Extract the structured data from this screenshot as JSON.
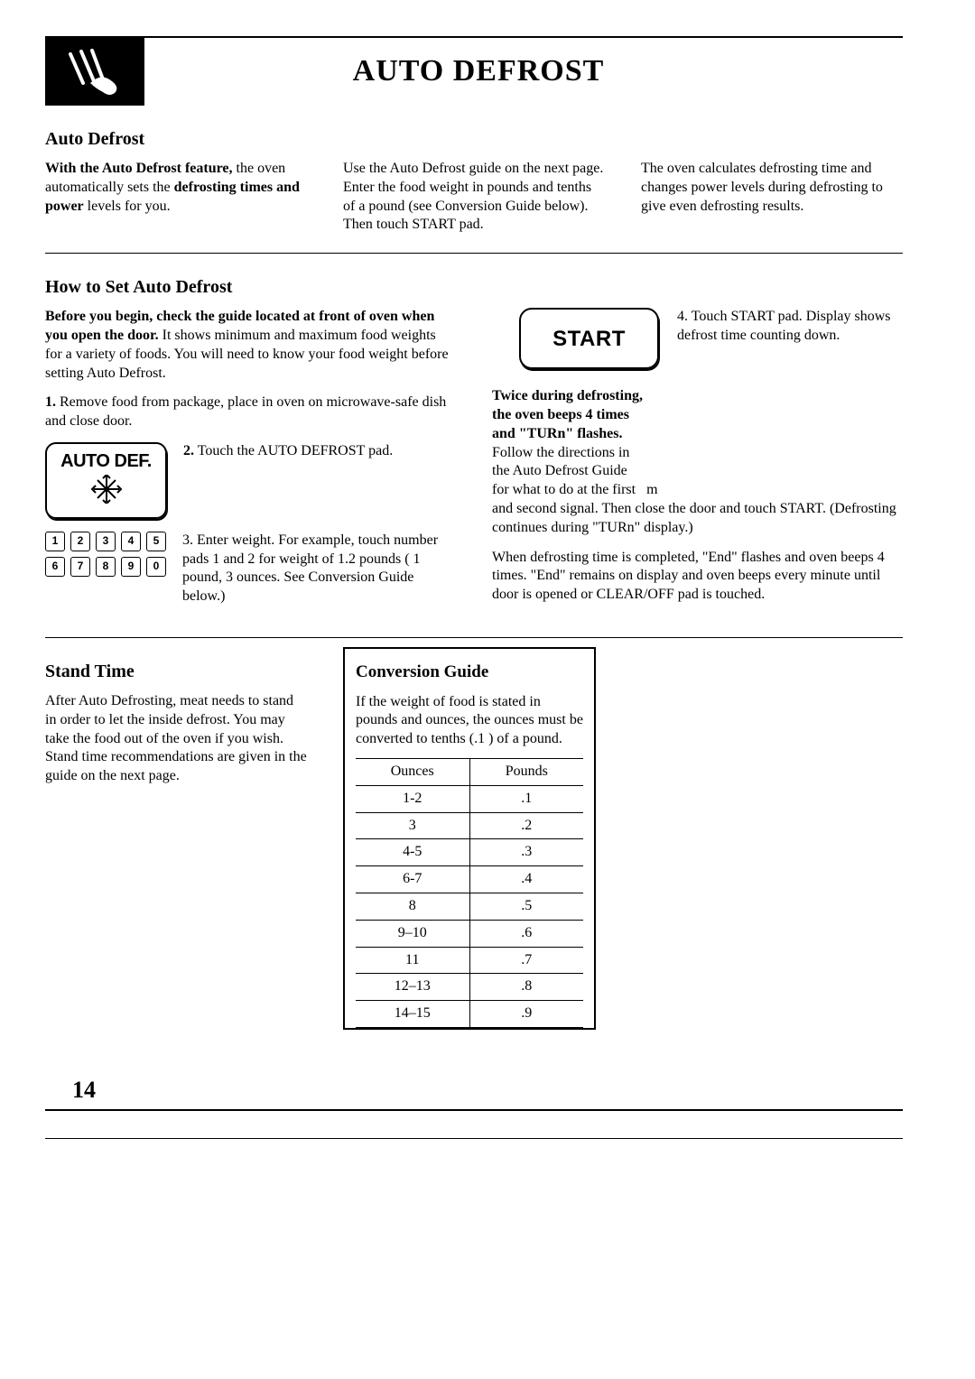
{
  "page": {
    "title": "AUTO DEFROST",
    "number": "14"
  },
  "section1": {
    "heading": "Auto Defrost",
    "col1_html": "<span class=\"bold\">With the Auto Defrost feature,</span> the oven automatically sets the <span class=\"bold\">defrosting times and power</span> levels for you.",
    "col2": "Use the Auto Defrost guide on the next page. Enter the food weight in pounds and tenths of a pound (see Conversion Guide below). Then touch START pad.",
    "col3": "The oven calculates defrosting time and changes power levels during defrosting to give even defrosting  results."
  },
  "section2": {
    "heading": "How to Set Auto Defrost",
    "intro_html": "<span class=\"bold\">Before you begin, check the guide located at front of oven when you open the door.</span> It shows minimum and maximum food weights for a variety of foods. You will need to know your food weight before setting Auto Defrost.",
    "step1_html": "<span class=\"bold\">1.</span> Remove food from package, place in oven on microwave-safe dish and close door.",
    "step2_html": "<span class=\"bold\">2.</span> Touch the AUTO DEFROST pad.",
    "auto_def_label": "AUTO DEF.",
    "keypad": [
      "1",
      "2",
      "3",
      "4",
      "5",
      "6",
      "7",
      "8",
      "9",
      "0"
    ],
    "step3": "3. Enter weight. For example, touch number pads 1 and 2 for weight of 1.2 pounds ( 1 pound, 3 ounces. See Conversion Guide below.)",
    "start_label": "START",
    "step4": "4. Touch START pad. Display shows defrost time counting down.",
    "beeps_html": "<span class=\"bold\">Twice during defrosting,<br>the oven beeps 4 times<br>and \"TURn\" flashes.</span><br>Follow the directions in<br>the Auto Defrost Guide<br>for what to do at the first&nbsp;&nbsp;&nbsp;m<br>and second signal. Then close the door and touch START. (Defrosting continues during \"TURn\" display.)",
    "end_text": "When defrosting time is completed, \"End\" flashes and oven beeps 4 times. \"End\" remains on display and oven beeps every minute until door is opened or CLEAR/OFF pad is touched."
  },
  "section3": {
    "heading": "Stand Time",
    "body": "After Auto Defrosting, meat needs to stand in order to let the inside defrost. You may take the food out of the oven if you wish. Stand time recommendations are given in the guide on the next page."
  },
  "conversion": {
    "heading": "Conversion Guide",
    "intro": "If the weight of food is stated in pounds and ounces, the ounces must be converted to tenths (.1 ) of a pound.",
    "col_ounces": "Ounces",
    "col_pounds": "Pounds",
    "rows": [
      {
        "oz": "1-2",
        "lb": ".1"
      },
      {
        "oz": "3",
        "lb": ".2"
      },
      {
        "oz": "4-5",
        "lb": ".3"
      },
      {
        "oz": "6-7",
        "lb": ".4"
      },
      {
        "oz": "8",
        "lb": ".5"
      },
      {
        "oz": "9–10",
        "lb": ".6"
      },
      {
        "oz": "11",
        "lb": ".7"
      },
      {
        "oz": "12–13",
        "lb": ".8"
      },
      {
        "oz": "14–15",
        "lb": ".9"
      }
    ]
  }
}
